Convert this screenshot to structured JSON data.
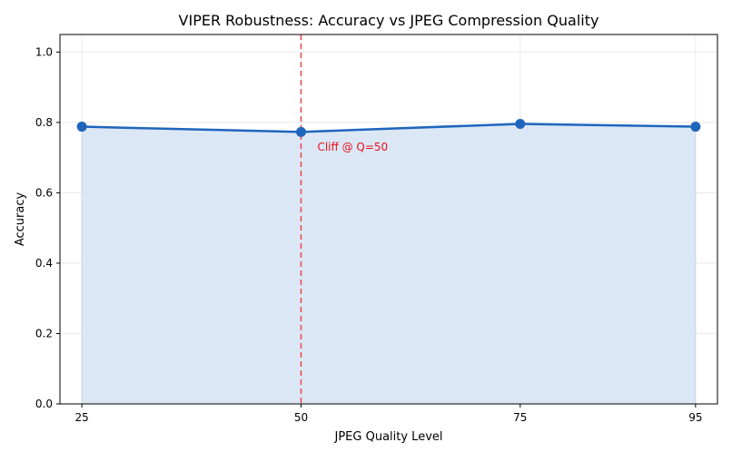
{
  "chart_data": {
    "type": "area",
    "title": "VIPER Robustness: Accuracy vs JPEG Compression Quality",
    "xlabel": "JPEG Quality Level",
    "ylabel": "Accuracy",
    "x": [
      25,
      50,
      75,
      95
    ],
    "x_tick_labels": [
      "25",
      "50",
      "75",
      "95"
    ],
    "xlim": [
      22.5,
      97.5
    ],
    "ylim": [
      0,
      1.05
    ],
    "y_ticks": [
      0.0,
      0.2,
      0.4,
      0.6,
      0.8,
      1.0
    ],
    "y_tick_labels": [
      "0.0",
      "0.2",
      "0.4",
      "0.6",
      "0.8",
      "1.0"
    ],
    "series": [
      {
        "values": [
          0.788,
          0.773,
          0.796,
          0.788
        ],
        "color": "#1f65bd",
        "fill_color": "#dce7f5"
      }
    ],
    "reference_line": {
      "x": 50,
      "color": "#e8474a",
      "style": "dashed"
    },
    "annotation": {
      "text": "Cliff @ Q=50",
      "x": 50,
      "y": 0.73,
      "color": "#e8101a"
    },
    "grid": true,
    "legend": "none"
  }
}
